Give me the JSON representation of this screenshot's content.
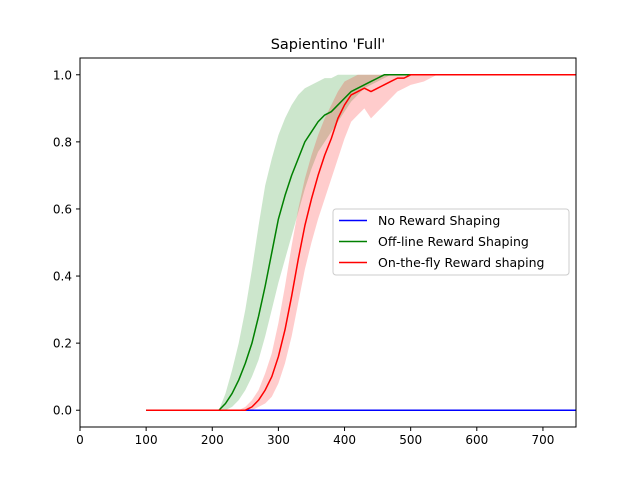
{
  "chart_data": {
    "type": "line",
    "title": "Sapientino 'Full'",
    "xlabel": "",
    "ylabel": "",
    "xlim": [
      0,
      750
    ],
    "ylim": [
      -0.05,
      1.05
    ],
    "xticks": [
      0,
      100,
      200,
      300,
      400,
      500,
      600,
      700
    ],
    "yticks": [
      0.0,
      0.2,
      0.4,
      0.6,
      0.8,
      1.0
    ],
    "grid": false,
    "legend_position": "center-right",
    "series": [
      {
        "name": "No Reward Shaping",
        "color": "#0000ff",
        "x": [
          100,
          750
        ],
        "y": [
          0.0,
          0.0
        ]
      },
      {
        "name": "Off-line Reward Shaping",
        "color": "#008000",
        "band_color": "#008000",
        "x": [
          100,
          210,
          220,
          230,
          240,
          250,
          260,
          270,
          280,
          290,
          300,
          310,
          320,
          330,
          340,
          350,
          360,
          370,
          380,
          390,
          400,
          410,
          420,
          430,
          440,
          450,
          460,
          470,
          480,
          500,
          750
        ],
        "y": [
          0.0,
          0.0,
          0.02,
          0.05,
          0.09,
          0.14,
          0.2,
          0.28,
          0.37,
          0.47,
          0.57,
          0.64,
          0.7,
          0.75,
          0.8,
          0.83,
          0.86,
          0.88,
          0.89,
          0.91,
          0.93,
          0.95,
          0.96,
          0.97,
          0.98,
          0.99,
          1.0,
          1.0,
          1.0,
          1.0,
          1.0
        ],
        "lower": [
          0.0,
          0.0,
          0.0,
          0.01,
          0.03,
          0.06,
          0.1,
          0.15,
          0.22,
          0.3,
          0.38,
          0.45,
          0.52,
          0.59,
          0.66,
          0.72,
          0.77,
          0.8,
          0.83,
          0.86,
          0.89,
          0.92,
          0.94,
          0.96,
          0.97,
          0.98,
          0.99,
          1.0,
          1.0,
          1.0,
          1.0
        ],
        "upper": [
          0.0,
          0.0,
          0.05,
          0.12,
          0.2,
          0.3,
          0.42,
          0.55,
          0.67,
          0.75,
          0.82,
          0.87,
          0.91,
          0.94,
          0.96,
          0.97,
          0.98,
          0.99,
          0.99,
          1.0,
          1.0,
          1.0,
          1.0,
          1.0,
          1.0,
          1.0,
          1.0,
          1.0,
          1.0,
          1.0,
          1.0
        ]
      },
      {
        "name": "On-the-fly Reward shaping",
        "color": "#ff0000",
        "band_color": "#ff0000",
        "x": [
          100,
          240,
          250,
          260,
          270,
          280,
          290,
          300,
          310,
          320,
          330,
          340,
          350,
          360,
          370,
          380,
          390,
          400,
          410,
          420,
          430,
          440,
          450,
          460,
          470,
          480,
          490,
          500,
          520,
          540,
          750
        ],
        "y": [
          0.0,
          0.0,
          0.0,
          0.01,
          0.03,
          0.06,
          0.1,
          0.16,
          0.24,
          0.34,
          0.45,
          0.55,
          0.63,
          0.7,
          0.76,
          0.81,
          0.87,
          0.91,
          0.94,
          0.95,
          0.96,
          0.95,
          0.96,
          0.97,
          0.98,
          0.99,
          0.99,
          1.0,
          1.0,
          1.0,
          1.0
        ],
        "lower": [
          0.0,
          0.0,
          0.0,
          0.0,
          0.01,
          0.02,
          0.04,
          0.08,
          0.14,
          0.22,
          0.32,
          0.42,
          0.5,
          0.57,
          0.63,
          0.69,
          0.75,
          0.81,
          0.86,
          0.88,
          0.9,
          0.87,
          0.89,
          0.91,
          0.93,
          0.95,
          0.96,
          0.97,
          0.98,
          1.0,
          1.0
        ],
        "upper": [
          0.0,
          0.0,
          0.01,
          0.03,
          0.06,
          0.11,
          0.17,
          0.26,
          0.37,
          0.49,
          0.6,
          0.69,
          0.76,
          0.82,
          0.87,
          0.91,
          0.95,
          0.98,
          0.99,
          1.0,
          1.0,
          1.0,
          1.0,
          1.0,
          1.0,
          1.0,
          1.0,
          1.0,
          1.0,
          1.0,
          1.0
        ]
      }
    ]
  }
}
